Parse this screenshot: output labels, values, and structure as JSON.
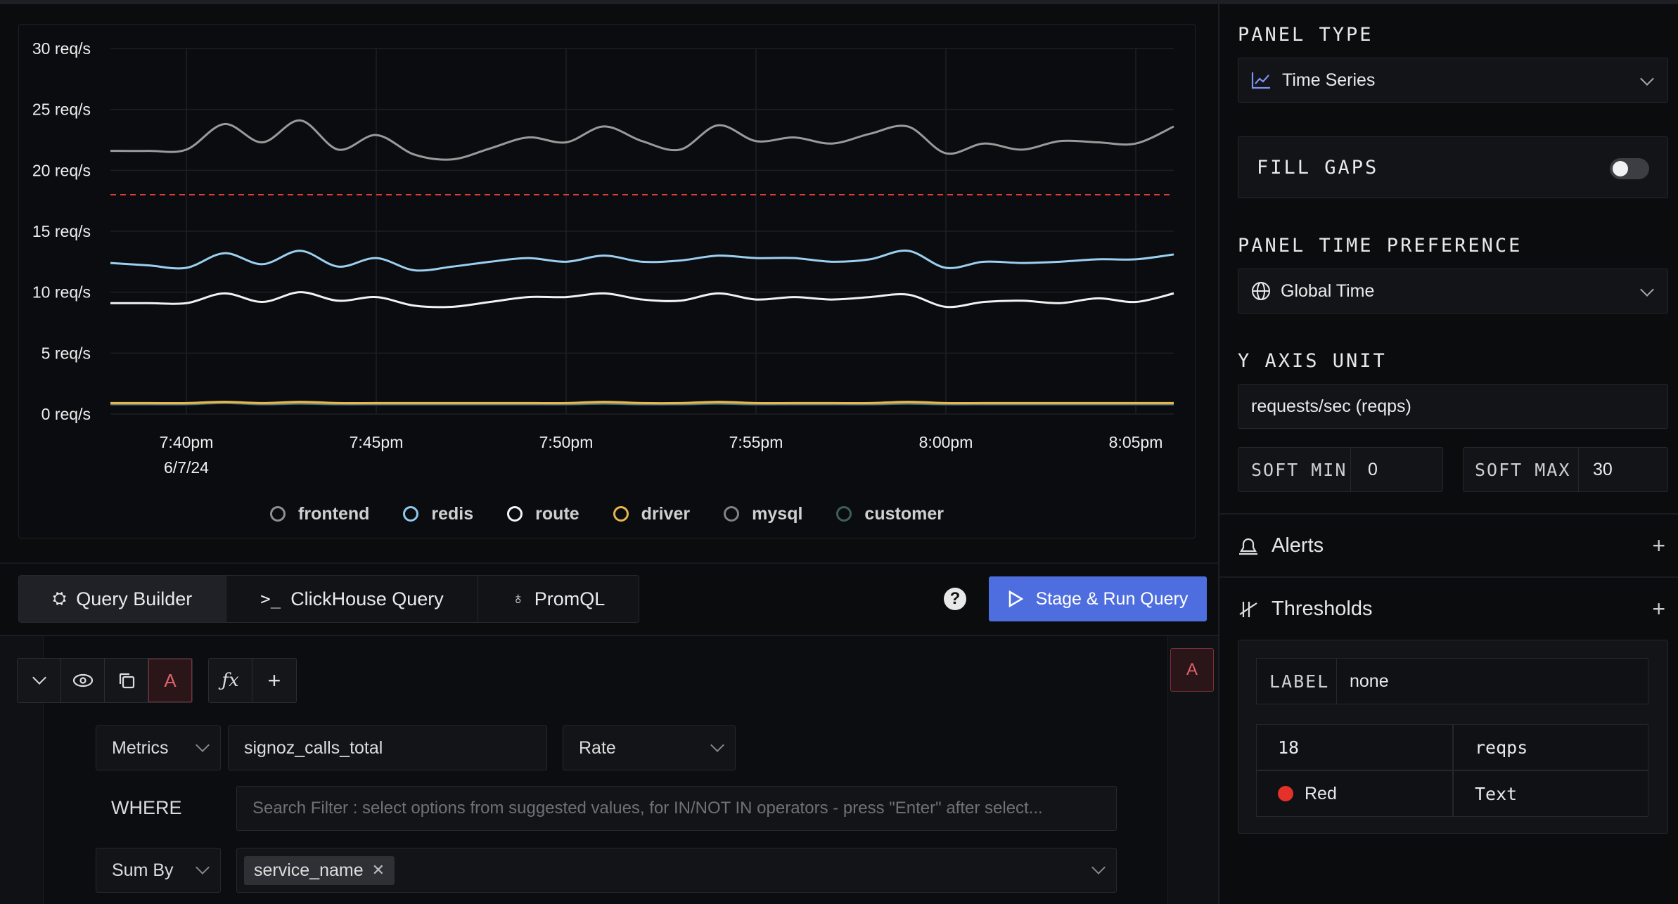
{
  "chart_data": {
    "type": "line",
    "x": [
      "7:38pm",
      "7:39pm",
      "7:40pm",
      "7:41pm",
      "7:42pm",
      "7:43pm",
      "7:44pm",
      "7:45pm",
      "7:46pm",
      "7:47pm",
      "7:48pm",
      "7:49pm",
      "7:50pm",
      "7:51pm",
      "7:52pm",
      "7:53pm",
      "7:54pm",
      "7:55pm",
      "7:56pm",
      "7:57pm",
      "7:58pm",
      "7:59pm",
      "8:00pm",
      "8:01pm",
      "8:02pm",
      "8:03pm",
      "8:04pm",
      "8:05pm",
      "8:06pm"
    ],
    "x_ticks": [
      "7:40pm",
      "7:45pm",
      "7:50pm",
      "7:55pm",
      "8:00pm",
      "8:05pm"
    ],
    "x_first_tick_sub": "6/7/24",
    "y_ticks": [
      "30 req/s",
      "25 req/s",
      "20 req/s",
      "15 req/s",
      "10 req/s",
      "5 req/s",
      "0 req/s"
    ],
    "ylim": [
      0,
      30
    ],
    "threshold": 18,
    "series": [
      {
        "name": "frontend",
        "color": "#9a9a9a",
        "values": [
          21.6,
          21.6,
          21.7,
          23.8,
          22.3,
          24.1,
          21.7,
          22.9,
          21.3,
          20.9,
          21.8,
          22.7,
          22.3,
          23.6,
          22.4,
          21.7,
          23.7,
          22.4,
          22.7,
          22.2,
          23.0,
          23.6,
          21.4,
          22.2,
          21.7,
          22.4,
          22.3,
          22.2,
          23.6
        ]
      },
      {
        "name": "redis",
        "color": "#9cd0f0",
        "values": [
          12.4,
          12.2,
          12.0,
          13.2,
          12.3,
          13.4,
          12.1,
          12.8,
          11.8,
          12.1,
          12.5,
          12.8,
          12.5,
          13.0,
          12.5,
          12.6,
          13.0,
          12.8,
          12.8,
          12.5,
          12.7,
          13.4,
          12.0,
          12.5,
          12.4,
          12.5,
          12.7,
          12.7,
          13.1
        ]
      },
      {
        "name": "route",
        "color": "#f2f2f2",
        "values": [
          9.1,
          9.1,
          9.1,
          9.9,
          9.2,
          10.0,
          9.3,
          9.6,
          8.9,
          8.8,
          9.2,
          9.6,
          9.6,
          9.9,
          9.4,
          9.3,
          9.9,
          9.4,
          9.6,
          9.4,
          9.6,
          9.8,
          8.8,
          9.2,
          9.3,
          9.1,
          9.5,
          9.2,
          9.9
        ]
      },
      {
        "name": "driver",
        "color": "#e8b94a",
        "values": [
          0.9,
          0.9,
          0.9,
          1.0,
          0.9,
          1.0,
          0.9,
          0.9,
          0.9,
          0.9,
          0.9,
          0.9,
          0.9,
          1.0,
          0.9,
          0.9,
          1.0,
          0.9,
          0.9,
          0.9,
          0.9,
          1.0,
          0.9,
          0.9,
          0.9,
          0.9,
          0.9,
          0.9,
          0.9
        ]
      },
      {
        "name": "mysql",
        "color": "#7d8088",
        "values": [
          0.85,
          0.85,
          0.85,
          0.95,
          0.85,
          0.9,
          0.85,
          0.85,
          0.85,
          0.85,
          0.85,
          0.85,
          0.85,
          0.9,
          0.85,
          0.85,
          0.9,
          0.85,
          0.85,
          0.85,
          0.85,
          0.9,
          0.85,
          0.85,
          0.85,
          0.85,
          0.85,
          0.85,
          0.85
        ]
      },
      {
        "name": "customer",
        "color": "#3c6b66",
        "values": [
          0.8,
          0.8,
          0.8,
          0.9,
          0.8,
          0.85,
          0.8,
          0.8,
          0.8,
          0.8,
          0.8,
          0.8,
          0.8,
          0.85,
          0.8,
          0.8,
          0.85,
          0.8,
          0.8,
          0.8,
          0.8,
          0.85,
          0.8,
          0.8,
          0.8,
          0.8,
          0.8,
          0.8,
          0.8
        ]
      }
    ]
  },
  "legend": [
    {
      "label": "frontend",
      "color": "#8c8f96"
    },
    {
      "label": "redis",
      "color": "#8fc9ee"
    },
    {
      "label": "route",
      "color": "#f4f4f4"
    },
    {
      "label": "driver",
      "color": "#e6b64a"
    },
    {
      "label": "mysql",
      "color": "#7e8189"
    },
    {
      "label": "customer",
      "color": "#3d5f5b"
    }
  ],
  "tabs": {
    "query_builder": "Query Builder",
    "clickhouse": "ClickHouse Query",
    "promql": "PromQL"
  },
  "help": "?",
  "run_button": "Stage & Run Query",
  "query": {
    "label": "A",
    "right_label": "A",
    "data_source": "Metrics",
    "metric": "signoz_calls_total",
    "aggregation": "Rate",
    "where_label": "WHERE",
    "where_placeholder": "Search Filter : select options from suggested values, for IN/NOT IN operators - press \"Enter\" after select...",
    "group_label": "Sum By",
    "group_tag": "service_name"
  },
  "sidebar": {
    "panel_type_label": "PANEL TYPE",
    "panel_type_value": "Time Series",
    "fill_gaps_label": "FILL GAPS",
    "fill_gaps_on": false,
    "time_pref_label": "PANEL TIME PREFERENCE",
    "time_pref_value": "Global Time",
    "y_axis_label": "Y AXIS UNIT",
    "y_axis_value": "requests/sec (reqps)",
    "soft_min_label": "SOFT MIN",
    "soft_min_value": "0",
    "soft_max_label": "SOFT MAX",
    "soft_max_value": "30",
    "alerts_label": "Alerts",
    "thresholds_label": "Thresholds",
    "threshold": {
      "label_key": "LABEL",
      "label_value": "none",
      "value": "18",
      "unit": "reqps",
      "color_name": "Red",
      "color": "#e5312a",
      "format": "Text"
    }
  }
}
